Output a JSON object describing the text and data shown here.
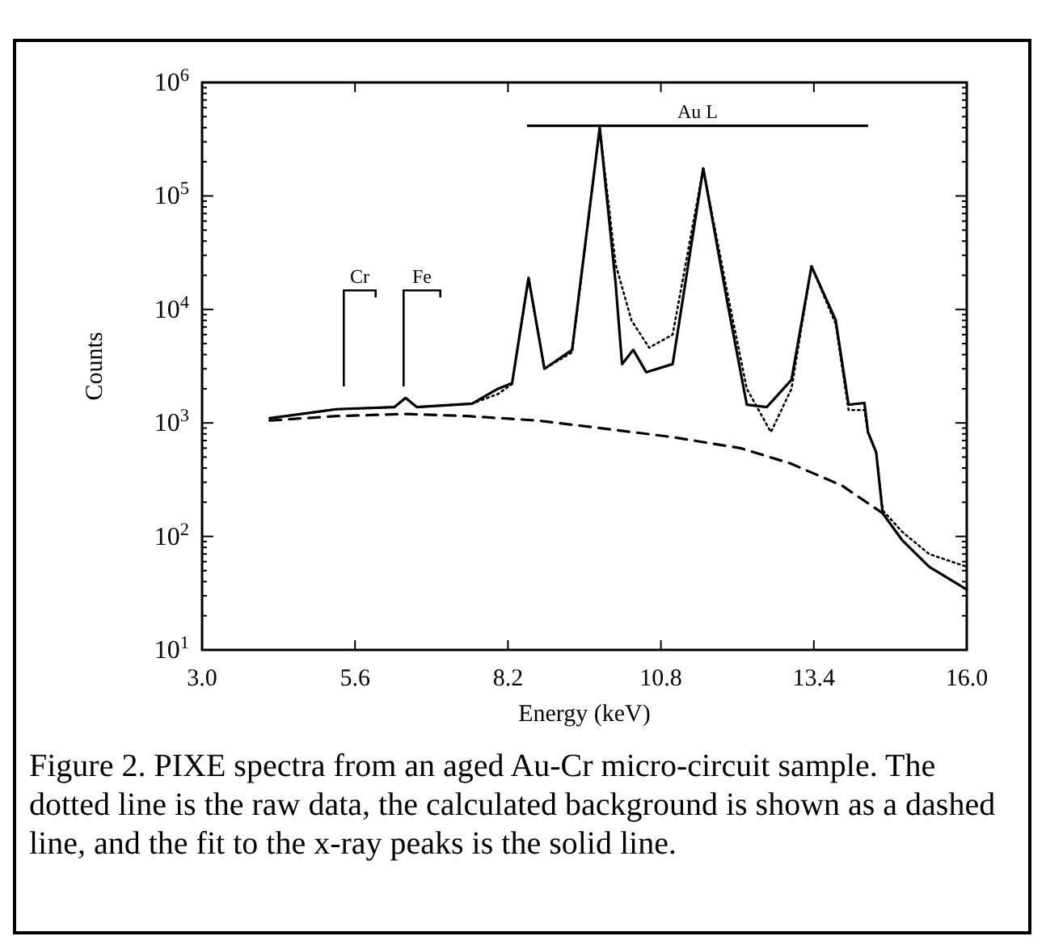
{
  "chart_data": {
    "type": "line",
    "xlabel": "Energy (keV)",
    "ylabel": "Counts",
    "log": "y",
    "grid": false,
    "xlim": [
      3,
      16
    ],
    "ylim": [
      10,
      1000000
    ],
    "xticks": [
      {
        "value": 3,
        "label": "3.0"
      },
      5.6,
      8.2,
      10.8,
      13.4,
      {
        "value": 16,
        "label": "16.0"
      }
    ],
    "yticks": [
      {
        "value": 10,
        "label": "10$^{1}$"
      },
      {
        "value": 100,
        "label": "10$^{2}$"
      },
      {
        "value": 1000,
        "label": "10$^{3}$"
      },
      {
        "value": 10000,
        "label": "10$^{4}$"
      },
      {
        "value": 100000,
        "label": "10$^{5}$"
      },
      {
        "value": 1000000,
        "label": "10$^{6}$"
      }
    ],
    "series": [
      {
        "color": "#000000",
        "line_style": "dashed",
        "x": [
          4.15,
          5.3,
          6.43,
          7.5,
          8.7,
          9.85,
          11,
          12.15,
          13,
          13.88,
          14.57
        ],
        "values": [
          1050,
          1150,
          1200,
          1150,
          1050,
          890,
          750,
          600,
          440,
          280,
          160
        ]
      },
      {
        "color": "#000000",
        "line_style": "dotted",
        "x": [
          4.15,
          5.28,
          6.27,
          6.46,
          6.65,
          7.59,
          8.03,
          8.27,
          8.55,
          8.82,
          9.29,
          9.76,
          10.03,
          10.3,
          10.6,
          11.0,
          11.52,
          11.93,
          12.26,
          12.67,
          13.02,
          13.36,
          13.77,
          13.99,
          14.26,
          14.32,
          14.46,
          14.57,
          14.9,
          15.36,
          16.0
        ],
        "values": [
          1100,
          1320,
          1380,
          1660,
          1380,
          1480,
          1800,
          2200,
          19000,
          3000,
          4200,
          400000,
          25000,
          8000,
          4600,
          6000,
          175000,
          14000,
          2000,
          830,
          2000,
          24000,
          7500,
          1300,
          1300,
          830,
          550,
          170,
          110,
          70,
          54
        ]
      },
      {
        "color": "#000000",
        "line_style": "solid",
        "x": [
          4.15,
          5.28,
          6.27,
          6.46,
          6.65,
          7.59,
          8.03,
          8.27,
          8.55,
          8.82,
          9.29,
          9.76,
          10.03,
          10.14,
          10.33,
          10.55,
          11.0,
          11.52,
          11.93,
          12.26,
          12.6,
          13.02,
          13.36,
          13.77,
          13.99,
          14.26,
          14.32,
          14.46,
          14.57,
          14.9,
          15.36,
          16.0
        ],
        "values": [
          1100,
          1320,
          1380,
          1660,
          1380,
          1480,
          2000,
          2240,
          19000,
          3000,
          4400,
          400000,
          17000,
          3300,
          4400,
          2800,
          3300,
          175000,
          11500,
          1450,
          1380,
          2400,
          24000,
          8100,
          1450,
          1500,
          830,
          550,
          160,
          93,
          54,
          34
        ]
      }
    ],
    "annotations": [
      "Cr",
      "Fe",
      "Au L",
      "Figure 2.  PIXE spectra from an aged Au-Cr micro-circuit sample.  The dotted line is the raw data, the calculated background is shown as a dashed line, and the fit to the x-ray peaks is the solid line."
    ]
  }
}
